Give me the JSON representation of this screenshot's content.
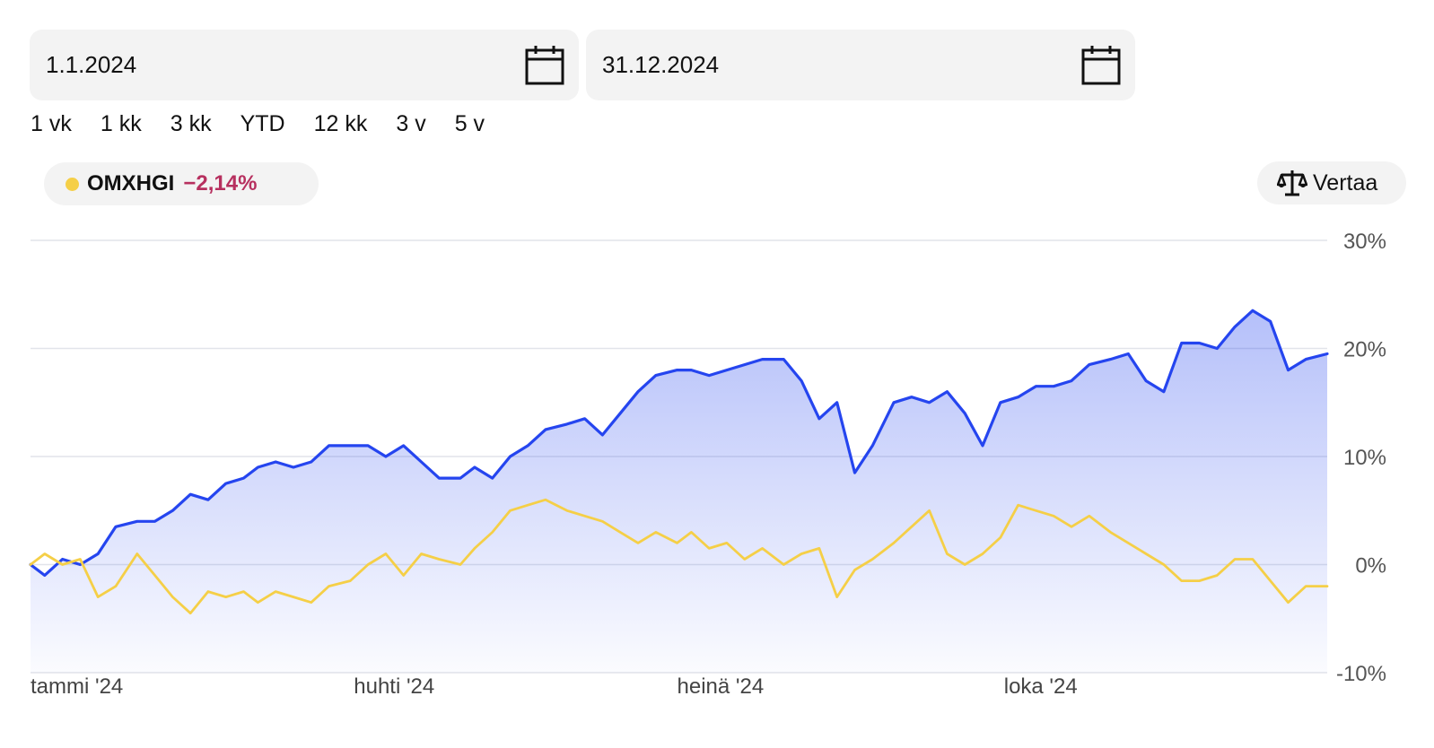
{
  "filters": {
    "start_date": "1.1.2024",
    "end_date": "31.12.2024",
    "ranges": [
      "1 vk",
      "1 kk",
      "3 kk",
      "YTD",
      "12 kk",
      "3 v",
      "5 v"
    ]
  },
  "legend": {
    "index_name": "OMXHGI",
    "index_change": "−2,14%",
    "index_color": "#f5cf47",
    "change_color": "#b7305f"
  },
  "compare_label": "Vertaa",
  "chart_data": {
    "type": "line",
    "title": "",
    "xlabel": "",
    "ylabel": "",
    "x_range": [
      "2024-01-01",
      "2024-12-31"
    ],
    "ylim": [
      -10,
      30
    ],
    "y_ticks": [
      -10,
      0,
      10,
      20,
      30
    ],
    "y_tick_labels": [
      "-10%",
      "0%",
      "10%",
      "20%",
      "30%"
    ],
    "x_ticks": [
      "2024-01-01",
      "2024-04-01",
      "2024-07-01",
      "2024-10-01"
    ],
    "x_tick_labels": [
      "tammi '24",
      "huhti '24",
      "heinä '24",
      "loka '24"
    ],
    "grid": true,
    "series": [
      {
        "name": "",
        "color": "#2545ef",
        "fill": true,
        "points": [
          [
            "2024-01-01",
            0.0
          ],
          [
            "2024-01-05",
            -1.0
          ],
          [
            "2024-01-10",
            0.5
          ],
          [
            "2024-01-15",
            0.0
          ],
          [
            "2024-01-20",
            1.0
          ],
          [
            "2024-01-25",
            3.5
          ],
          [
            "2024-01-31",
            4.0
          ],
          [
            "2024-02-05",
            4.0
          ],
          [
            "2024-02-10",
            5.0
          ],
          [
            "2024-02-15",
            6.5
          ],
          [
            "2024-02-20",
            6.0
          ],
          [
            "2024-02-25",
            7.5
          ],
          [
            "2024-03-01",
            8.0
          ],
          [
            "2024-03-05",
            9.0
          ],
          [
            "2024-03-10",
            9.5
          ],
          [
            "2024-03-15",
            9.0
          ],
          [
            "2024-03-20",
            9.5
          ],
          [
            "2024-03-25",
            11.0
          ],
          [
            "2024-03-31",
            11.0
          ],
          [
            "2024-04-05",
            11.0
          ],
          [
            "2024-04-10",
            10.0
          ],
          [
            "2024-04-15",
            11.0
          ],
          [
            "2024-04-20",
            9.5
          ],
          [
            "2024-04-25",
            8.0
          ],
          [
            "2024-05-01",
            8.0
          ],
          [
            "2024-05-05",
            9.0
          ],
          [
            "2024-05-10",
            8.0
          ],
          [
            "2024-05-15",
            10.0
          ],
          [
            "2024-05-20",
            11.0
          ],
          [
            "2024-05-25",
            12.5
          ],
          [
            "2024-05-31",
            13.0
          ],
          [
            "2024-06-05",
            13.5
          ],
          [
            "2024-06-10",
            12.0
          ],
          [
            "2024-06-15",
            14.0
          ],
          [
            "2024-06-20",
            16.0
          ],
          [
            "2024-06-25",
            17.5
          ],
          [
            "2024-07-01",
            18.0
          ],
          [
            "2024-07-05",
            18.0
          ],
          [
            "2024-07-10",
            17.5
          ],
          [
            "2024-07-15",
            18.0
          ],
          [
            "2024-07-20",
            18.5
          ],
          [
            "2024-07-25",
            19.0
          ],
          [
            "2024-07-31",
            19.0
          ],
          [
            "2024-08-05",
            17.0
          ],
          [
            "2024-08-10",
            13.5
          ],
          [
            "2024-08-15",
            15.0
          ],
          [
            "2024-08-20",
            8.5
          ],
          [
            "2024-08-25",
            11.0
          ],
          [
            "2024-08-31",
            15.0
          ],
          [
            "2024-09-05",
            15.5
          ],
          [
            "2024-09-10",
            15.0
          ],
          [
            "2024-09-15",
            16.0
          ],
          [
            "2024-09-20",
            14.0
          ],
          [
            "2024-09-25",
            11.0
          ],
          [
            "2024-09-30",
            15.0
          ],
          [
            "2024-10-05",
            15.5
          ],
          [
            "2024-10-10",
            16.5
          ],
          [
            "2024-10-15",
            16.5
          ],
          [
            "2024-10-20",
            17.0
          ],
          [
            "2024-10-25",
            18.5
          ],
          [
            "2024-10-31",
            19.0
          ],
          [
            "2024-11-05",
            19.5
          ],
          [
            "2024-11-10",
            17.0
          ],
          [
            "2024-11-15",
            16.0
          ],
          [
            "2024-11-20",
            20.5
          ],
          [
            "2024-11-25",
            20.5
          ],
          [
            "2024-11-30",
            20.0
          ],
          [
            "2024-12-05",
            22.0
          ],
          [
            "2024-12-10",
            23.5
          ],
          [
            "2024-12-15",
            22.5
          ],
          [
            "2024-12-20",
            18.0
          ],
          [
            "2024-12-25",
            19.0
          ],
          [
            "2024-12-31",
            19.5
          ]
        ]
      },
      {
        "name": "OMXHGI",
        "color": "#f5cf47",
        "fill": false,
        "points": [
          [
            "2024-01-01",
            0.0
          ],
          [
            "2024-01-05",
            1.0
          ],
          [
            "2024-01-10",
            0.0
          ],
          [
            "2024-01-15",
            0.5
          ],
          [
            "2024-01-20",
            -3.0
          ],
          [
            "2024-01-25",
            -2.0
          ],
          [
            "2024-01-31",
            1.0
          ],
          [
            "2024-02-05",
            -1.0
          ],
          [
            "2024-02-10",
            -3.0
          ],
          [
            "2024-02-15",
            -4.5
          ],
          [
            "2024-02-20",
            -2.5
          ],
          [
            "2024-02-25",
            -3.0
          ],
          [
            "2024-03-01",
            -2.5
          ],
          [
            "2024-03-05",
            -3.5
          ],
          [
            "2024-03-10",
            -2.5
          ],
          [
            "2024-03-15",
            -3.0
          ],
          [
            "2024-03-20",
            -3.5
          ],
          [
            "2024-03-25",
            -2.0
          ],
          [
            "2024-03-31",
            -1.5
          ],
          [
            "2024-04-05",
            0.0
          ],
          [
            "2024-04-10",
            1.0
          ],
          [
            "2024-04-15",
            -1.0
          ],
          [
            "2024-04-20",
            1.0
          ],
          [
            "2024-04-25",
            0.5
          ],
          [
            "2024-05-01",
            0.0
          ],
          [
            "2024-05-05",
            1.5
          ],
          [
            "2024-05-10",
            3.0
          ],
          [
            "2024-05-15",
            5.0
          ],
          [
            "2024-05-20",
            5.5
          ],
          [
            "2024-05-25",
            6.0
          ],
          [
            "2024-05-31",
            5.0
          ],
          [
            "2024-06-05",
            4.5
          ],
          [
            "2024-06-10",
            4.0
          ],
          [
            "2024-06-15",
            3.0
          ],
          [
            "2024-06-20",
            2.0
          ],
          [
            "2024-06-25",
            3.0
          ],
          [
            "2024-07-01",
            2.0
          ],
          [
            "2024-07-05",
            3.0
          ],
          [
            "2024-07-10",
            1.5
          ],
          [
            "2024-07-15",
            2.0
          ],
          [
            "2024-07-20",
            0.5
          ],
          [
            "2024-07-25",
            1.5
          ],
          [
            "2024-07-31",
            0.0
          ],
          [
            "2024-08-05",
            1.0
          ],
          [
            "2024-08-10",
            1.5
          ],
          [
            "2024-08-15",
            -3.0
          ],
          [
            "2024-08-20",
            -0.5
          ],
          [
            "2024-08-25",
            0.5
          ],
          [
            "2024-08-31",
            2.0
          ],
          [
            "2024-09-05",
            3.5
          ],
          [
            "2024-09-10",
            5.0
          ],
          [
            "2024-09-15",
            1.0
          ],
          [
            "2024-09-20",
            0.0
          ],
          [
            "2024-09-25",
            1.0
          ],
          [
            "2024-09-30",
            2.5
          ],
          [
            "2024-10-05",
            5.5
          ],
          [
            "2024-10-10",
            5.0
          ],
          [
            "2024-10-15",
            4.5
          ],
          [
            "2024-10-20",
            3.5
          ],
          [
            "2024-10-25",
            4.5
          ],
          [
            "2024-10-31",
            3.0
          ],
          [
            "2024-11-05",
            2.0
          ],
          [
            "2024-11-10",
            1.0
          ],
          [
            "2024-11-15",
            0.0
          ],
          [
            "2024-11-20",
            -1.5
          ],
          [
            "2024-11-25",
            -1.5
          ],
          [
            "2024-11-30",
            -1.0
          ],
          [
            "2024-12-05",
            0.5
          ],
          [
            "2024-12-10",
            0.5
          ],
          [
            "2024-12-15",
            -1.5
          ],
          [
            "2024-12-20",
            -3.5
          ],
          [
            "2024-12-25",
            -2.0
          ],
          [
            "2024-12-31",
            -2.0
          ]
        ]
      }
    ]
  }
}
